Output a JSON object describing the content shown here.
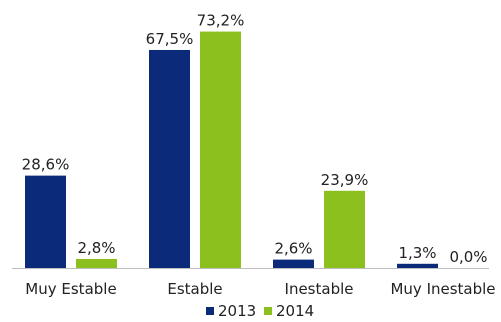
{
  "chart_data": {
    "type": "bar",
    "categories": [
      "Muy Estable",
      "Estable",
      "Inestable",
      "Muy Inestable"
    ],
    "series": [
      {
        "name": "2013",
        "values": [
          28.6,
          67.5,
          2.6,
          1.3
        ],
        "labels": [
          "28,6%",
          "67,5%",
          "2,6%",
          "1,3%"
        ],
        "color": "#0b2a7a"
      },
      {
        "name": "2014",
        "values": [
          2.8,
          73.2,
          23.9,
          0.0
        ],
        "labels": [
          "2,8%",
          "73,2%",
          "23,9%",
          "0,0%"
        ],
        "color": "#8cc01f"
      }
    ],
    "title": "",
    "xlabel": "",
    "ylabel": "",
    "ylim": [
      0,
      80
    ],
    "grid": false,
    "legend_position": "bottom"
  }
}
